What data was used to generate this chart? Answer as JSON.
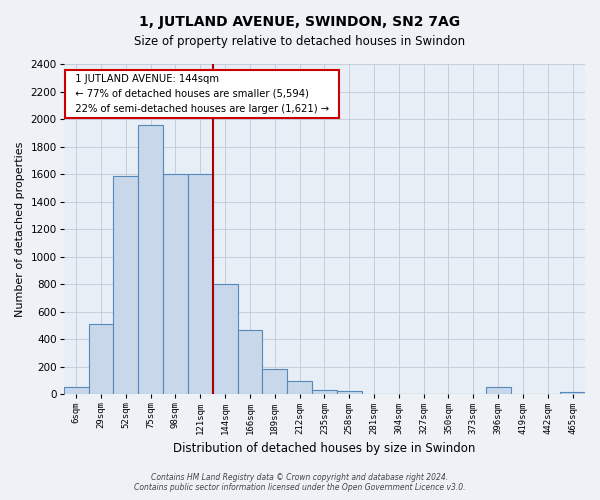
{
  "title": "1, JUTLAND AVENUE, SWINDON, SN2 7AG",
  "subtitle": "Size of property relative to detached houses in Swindon",
  "xlabel": "Distribution of detached houses by size in Swindon",
  "ylabel": "Number of detached properties",
  "bar_labels": [
    "6sqm",
    "29sqm",
    "52sqm",
    "75sqm",
    "98sqm",
    "121sqm",
    "144sqm",
    "166sqm",
    "189sqm",
    "212sqm",
    "235sqm",
    "258sqm",
    "281sqm",
    "304sqm",
    "327sqm",
    "350sqm",
    "373sqm",
    "396sqm",
    "419sqm",
    "442sqm",
    "465sqm"
  ],
  "bar_values": [
    55,
    510,
    1590,
    1960,
    1600,
    1600,
    800,
    470,
    185,
    95,
    30,
    25,
    0,
    0,
    0,
    0,
    0,
    55,
    0,
    0,
    20
  ],
  "bar_color": "#c8d8ea",
  "bar_edge_color": "#5588bb",
  "vline_index": 6,
  "vline_color": "#aa0000",
  "annotation_title": "1 JUTLAND AVENUE: 144sqm",
  "annotation_line1": "← 77% of detached houses are smaller (5,594)",
  "annotation_line2": "22% of semi-detached houses are larger (1,621) →",
  "annotation_box_edge": "#cc0000",
  "ylim": [
    0,
    2400
  ],
  "yticks": [
    0,
    200,
    400,
    600,
    800,
    1000,
    1200,
    1400,
    1600,
    1800,
    2000,
    2200,
    2400
  ],
  "footer1": "Contains HM Land Registry data © Crown copyright and database right 2024.",
  "footer2": "Contains public sector information licensed under the Open Government Licence v3.0.",
  "bg_color": "#eef2f7",
  "plot_bg_color": "#e8eef5"
}
